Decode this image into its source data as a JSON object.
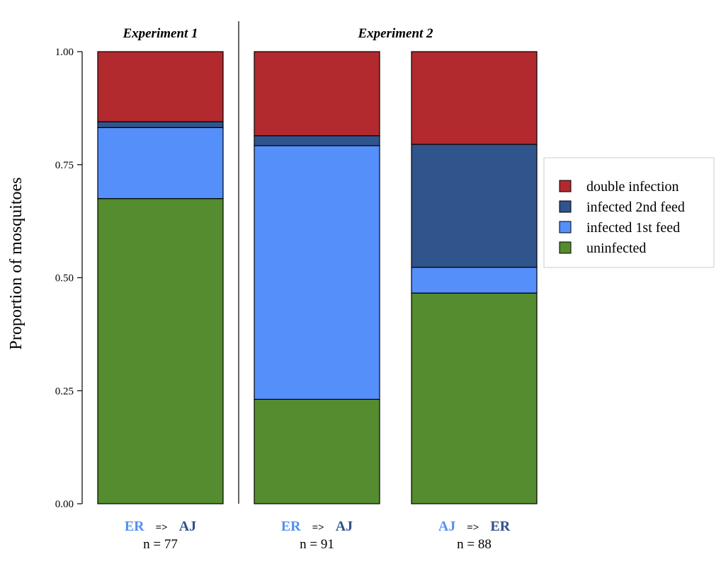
{
  "chart_data": {
    "type": "bar",
    "stacked": true,
    "ylabel": "Proportion of mosquitoes",
    "ylim": [
      0,
      1
    ],
    "yticks": [
      "0.00",
      "0.25",
      "0.50",
      "0.75",
      "1.00"
    ],
    "ytick_values": [
      0,
      0.25,
      0.5,
      0.75,
      1.0
    ],
    "panels": [
      {
        "title": "Experiment 1",
        "bars": [
          0
        ]
      },
      {
        "title": "Experiment 2",
        "bars": [
          1,
          2
        ]
      }
    ],
    "categories": [
      {
        "from": "ER",
        "arrow": "=>",
        "to": "AJ",
        "n_label": "n = 77",
        "from_color": "#5590f0",
        "to_color": "#2e5088"
      },
      {
        "from": "ER",
        "arrow": "=>",
        "to": "AJ",
        "n_label": "n = 91",
        "from_color": "#5590f0",
        "to_color": "#2e5088"
      },
      {
        "from": "AJ",
        "arrow": "=>",
        "to": "ER",
        "n_label": "n = 88",
        "from_color": "#5590f0",
        "to_color": "#2e5088"
      }
    ],
    "series": [
      {
        "name": "uninfected",
        "color": "#548c2f",
        "values": [
          0.675,
          0.231,
          0.466
        ]
      },
      {
        "name": "infected 1st feed",
        "color": "#558ffa",
        "values": [
          0.157,
          0.561,
          0.057
        ]
      },
      {
        "name": "infected 2nd feed",
        "color": "#30548c",
        "values": [
          0.013,
          0.022,
          0.272
        ]
      },
      {
        "name": "double infection",
        "color": "#b22a2e",
        "values": [
          0.155,
          0.186,
          0.205
        ]
      }
    ],
    "legend": {
      "position": "right",
      "order": [
        "double infection",
        "infected 2nd feed",
        "infected 1st feed",
        "uninfected"
      ]
    },
    "grid": false
  }
}
